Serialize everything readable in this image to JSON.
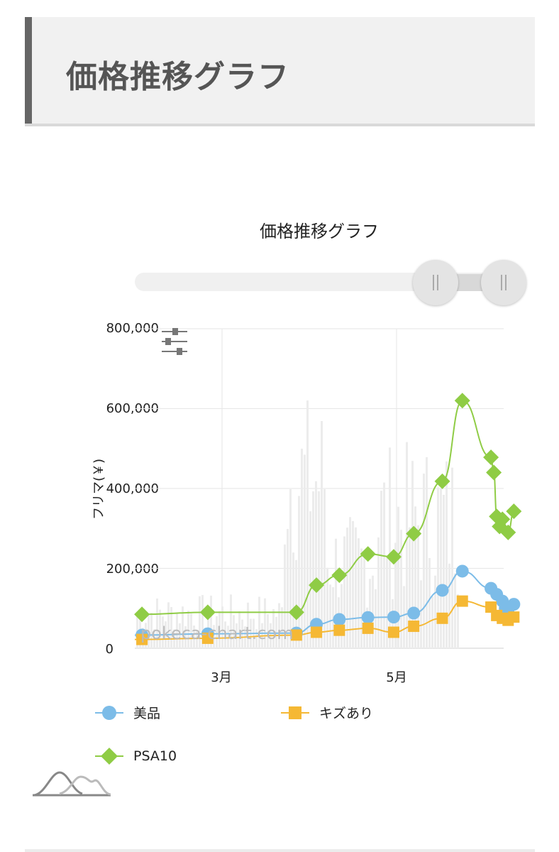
{
  "header": {
    "title": "価格推移グラフ"
  },
  "chart_data": {
    "type": "line",
    "title": "価格推移グラフ",
    "ylabel": "フリマ(￥)",
    "xlabel": "",
    "ylim": [
      0,
      800000
    ],
    "y_ticks": [
      "0",
      "200,000",
      "400,000",
      "600,000",
      "800,000"
    ],
    "x_ticks": [
      "3月",
      "5月"
    ],
    "grid": true,
    "legend_position": "bottom",
    "series": [
      {
        "name": "美品",
        "color": "#7cbce8",
        "marker": "circle",
        "points": [
          [
            "02-01",
            33000
          ],
          [
            "02-24",
            36000
          ],
          [
            "03-27",
            38000
          ],
          [
            "04-03",
            60000
          ],
          [
            "04-11",
            72000
          ],
          [
            "04-21",
            77000
          ],
          [
            "04-30",
            78000
          ],
          [
            "05-07",
            88000
          ],
          [
            "05-17",
            145000
          ],
          [
            "05-24",
            193000
          ],
          [
            "06-03",
            150000
          ],
          [
            "06-05",
            135000
          ],
          [
            "06-07",
            118000
          ],
          [
            "06-08",
            100000
          ],
          [
            "06-09",
            90000
          ],
          [
            "06-11",
            110000
          ]
        ]
      },
      {
        "name": "キズあり",
        "color": "#f5b834",
        "marker": "square",
        "points": [
          [
            "02-01",
            22000
          ],
          [
            "02-24",
            25000
          ],
          [
            "03-27",
            33000
          ],
          [
            "04-03",
            40000
          ],
          [
            "04-11",
            45000
          ],
          [
            "04-21",
            50000
          ],
          [
            "04-30",
            40000
          ],
          [
            "05-07",
            55000
          ],
          [
            "05-17",
            75000
          ],
          [
            "05-24",
            118000
          ],
          [
            "06-03",
            103000
          ],
          [
            "06-05",
            82000
          ],
          [
            "06-07",
            75000
          ],
          [
            "06-09",
            70000
          ],
          [
            "06-11",
            78000
          ]
        ]
      },
      {
        "name": "PSA10",
        "color": "#8fcc45",
        "marker": "diamond",
        "points": [
          [
            "02-01",
            85000
          ],
          [
            "02-24",
            90000
          ],
          [
            "03-27",
            90000
          ],
          [
            "04-03",
            158000
          ],
          [
            "04-11",
            183000
          ],
          [
            "04-21",
            236000
          ],
          [
            "04-30",
            229000
          ],
          [
            "05-07",
            287000
          ],
          [
            "05-17",
            418000
          ],
          [
            "05-24",
            620000
          ],
          [
            "06-03",
            478000
          ],
          [
            "06-04",
            440000
          ],
          [
            "06-05",
            330000
          ],
          [
            "06-06",
            305000
          ],
          [
            "06-07",
            323000
          ],
          [
            "06-09",
            290000
          ],
          [
            "06-11",
            343000
          ]
        ]
      }
    ]
  },
  "watermark": "pokeca-chart.com",
  "icons": {
    "settings": "sliders-icon",
    "mini_chart": "distribution-icon"
  }
}
